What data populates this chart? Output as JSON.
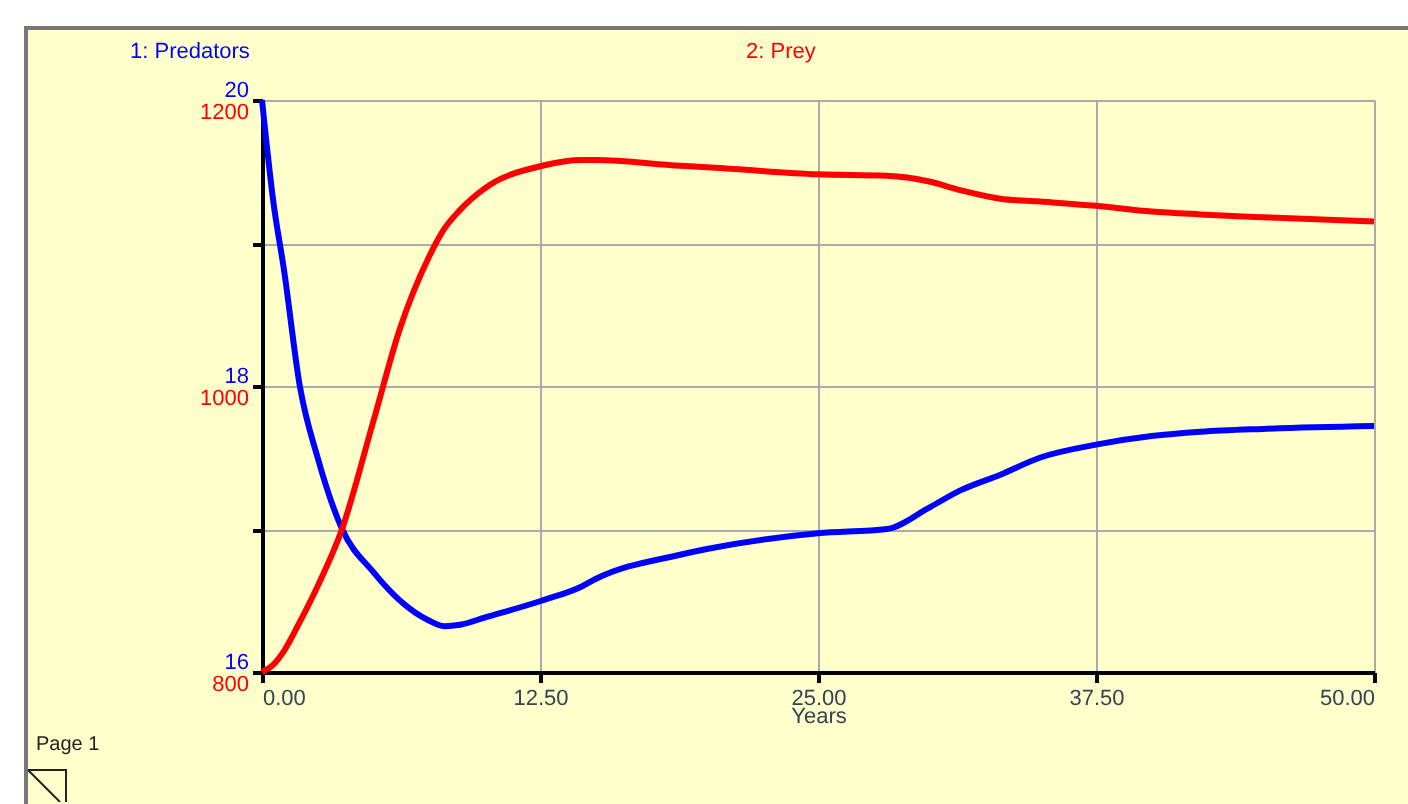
{
  "chart_data": {
    "type": "line",
    "x": [
      0,
      0.5,
      1,
      1.7,
      2.5,
      3.6,
      5,
      6.2,
      7.5,
      8.2,
      8.9,
      10,
      12.6,
      14.4,
      15,
      18.8,
      20,
      25,
      28.1,
      30,
      31.4,
      33.2,
      35,
      37.5,
      40,
      42.2,
      45,
      50
    ],
    "series": [
      {
        "name": "1: Predators",
        "color": "#0000ff",
        "axis": "y",
        "values": [
          20,
          19.3,
          18.8,
          18,
          17.5,
          17,
          16.7,
          16.5,
          16.36,
          16.32,
          16.33,
          16.38,
          16.5,
          16.6,
          16.65,
          16.82,
          16.86,
          16.97,
          17,
          17.15,
          17.27,
          17.38,
          17.5,
          17.59,
          17.65,
          17.68,
          17.7,
          17.72
        ]
      },
      {
        "name": "2: Prey",
        "color": "#ff0000",
        "axis": "y2",
        "values": [
          800,
          805,
          815,
          835,
          860,
          900,
          975,
          1040,
          1090,
          1110,
          1123,
          1138,
          1154,
          1158,
          1158,
          1154,
          1153,
          1148,
          1147,
          1143,
          1137,
          1131,
          1129,
          1126,
          1122,
          1120,
          1118,
          1115
        ]
      }
    ],
    "xlabel": "Years",
    "xlim": [
      0,
      50
    ],
    "xticks": [
      {
        "value": 0,
        "label": "0.00"
      },
      {
        "value": 12.5,
        "label": "12.50"
      },
      {
        "value": 25,
        "label": "25.00"
      },
      {
        "value": 37.5,
        "label": "37.50"
      },
      {
        "value": 50,
        "label": "50.00"
      }
    ],
    "ylim": [
      16,
      20
    ],
    "yticks": [
      16,
      {
        "value": 17,
        "label": null
      },
      18,
      {
        "value": 19,
        "label": null
      },
      20
    ],
    "y2lim": [
      800,
      1200
    ],
    "y2ticks": [
      800,
      {
        "value": 900,
        "label": null
      },
      1000,
      {
        "value": 1100,
        "label": null
      },
      1200
    ],
    "grid": true,
    "legend": "top",
    "annotations": [
      "Page 1"
    ]
  }
}
